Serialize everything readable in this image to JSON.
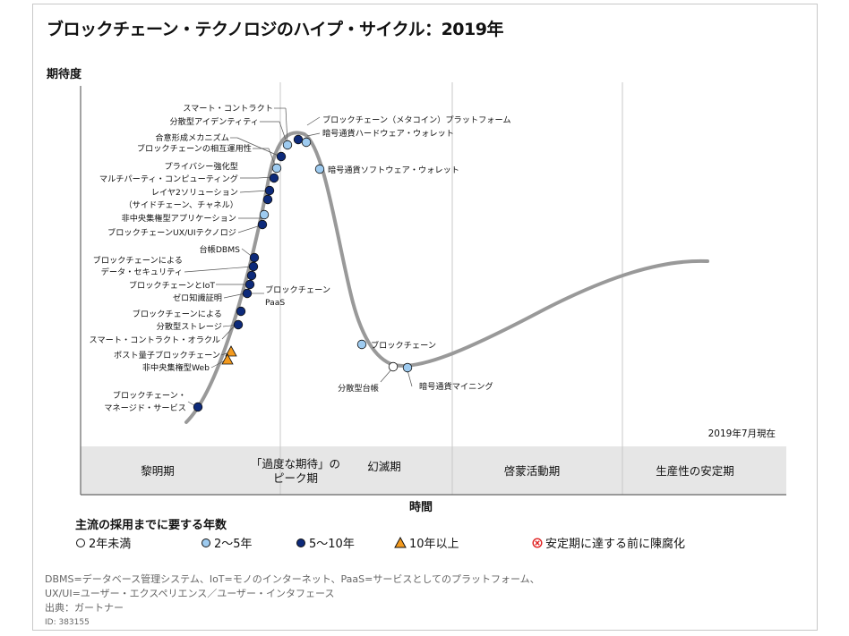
{
  "title": "ブロックチェーン・テクノロジのハイプ・サイクル：2019年",
  "y_axis_label": "期待度",
  "x_axis_label": "時間",
  "as_of": "2019年7月現在",
  "phases": [
    "黎明期",
    "「過度な期待」のピーク期",
    "幻滅期",
    "啓蒙活動期",
    "生産性の安定期"
  ],
  "technologies": [
    {
      "name": "スマート・コントラクト",
      "marker": "light"
    },
    {
      "name": "分散型アイデンティティ",
      "marker": "light"
    },
    {
      "name": "合意形成メカニズム",
      "marker": "dark"
    },
    {
      "name": "ブロックチェーンの相互運用性",
      "marker": "light"
    },
    {
      "name": "プライバシー強化型マルチパーティ・コンピューティング",
      "marker": "dark"
    },
    {
      "name": "レイヤ2ソリューション（サイドチェーン、チャネル）",
      "marker": "dark"
    },
    {
      "name": "非中央集権型アプリケーション",
      "marker": "light"
    },
    {
      "name": "ブロックチェーンUX/UIテクノロジ",
      "marker": "dark"
    },
    {
      "name": "台帳DBMS",
      "marker": "dark"
    },
    {
      "name": "ブロックチェーンによるデータ・セキュリティ",
      "marker": "dark"
    },
    {
      "name": "ブロックチェーンとIoT",
      "marker": "dark"
    },
    {
      "name": "ゼロ知識証明",
      "marker": "dark"
    },
    {
      "name": "ブロックチェーンPaaS",
      "marker": "dark"
    },
    {
      "name": "ブロックチェーンによる分散型ストレージ",
      "marker": "dark"
    },
    {
      "name": "スマート・コントラクト・オラクル",
      "marker": "dark"
    },
    {
      "name": "ポスト量子ブロックチェーン",
      "marker": "triangle"
    },
    {
      "name": "非中央集権型Web",
      "marker": "triangle"
    },
    {
      "name": "ブロックチェーン・マネージド・サービス",
      "marker": "dark"
    },
    {
      "name": "ブロックチェーン（メタコイン）プラットフォーム",
      "marker": "dark"
    },
    {
      "name": "暗号通貨ハードウェア・ウォレット",
      "marker": "light"
    },
    {
      "name": "暗号通貨ソフトウェア・ウォレット",
      "marker": "light"
    },
    {
      "name": "ブロックチェーン",
      "marker": "light"
    },
    {
      "name": "分散型台帳",
      "marker": "white"
    },
    {
      "name": "暗号通貨マイニング",
      "marker": "light"
    }
  ],
  "labels": {
    "smart_contract": "スマート・コントラクト",
    "did": "分散型アイデンティティ",
    "consensus": "合意形成メカニズム",
    "interop": "ブロックチェーンの相互運用性",
    "privacy_1": "プライバシー強化型",
    "privacy_2": "マルチパーティ・コンピューティング",
    "layer2_1": "レイヤ2ソリューション",
    "layer2_2": "（サイドチェーン、チャネル）",
    "dapps": "非中央集権型アプリケーション",
    "uxui": "ブロックチェーンUX/UIテクノロジ",
    "ledger_dbms": "台帳DBMS",
    "datasec_1": "ブロックチェーンによる",
    "datasec_2": "データ・セキュリティ",
    "iot": "ブロックチェーンとIoT",
    "zkp": "ゼロ知識証明",
    "paas_1": "ブロックチェーン",
    "paas_2": "PaaS",
    "storage_1": "ブロックチェーンによる",
    "storage_2": "分散型ストレージ",
    "oracle": "スマート・コントラクト・オラクル",
    "pq": "ポスト量子ブロックチェーン",
    "dweb": "非中央集権型Web",
    "managed_1": "ブロックチェーン・",
    "managed_2": "マネージド・サービス",
    "metacoin": "ブロックチェーン（メタコイン）プラットフォーム",
    "hw_wallet": "暗号通貨ハードウェア・ウォレット",
    "sw_wallet": "暗号通貨ソフトウェア・ウォレット",
    "blockchain": "ブロックチェーン",
    "dist_ledger": "分散型台帳",
    "mining": "暗号通貨マイニング"
  },
  "legend": {
    "title": "主流の採用までに要する年数",
    "lt2": "2年未満",
    "y2_5": "2～5年",
    "y5_10": "5～10年",
    "gt10": "10年以上",
    "obsolete": "安定期に達する前に陳腐化"
  },
  "notes": {
    "line1": "DBMS=データベース管理システム、IoT=モノのインターネット、PaaS=サービスとしてのプラットフォーム、",
    "line2": "UX/UI=ユーザー・エクスペリエンス／ユーザー・インタフェース",
    "source": "出典：ガートナー",
    "id": "ID: 383155"
  },
  "colors": {
    "curve": "#999999",
    "dark_marker": "#0d2a7a",
    "light_marker": "#9ecbf0",
    "triangle_marker": "#f39a1e",
    "obsolete_marker": "#e02020",
    "phase_band": "#e6e6e6"
  }
}
